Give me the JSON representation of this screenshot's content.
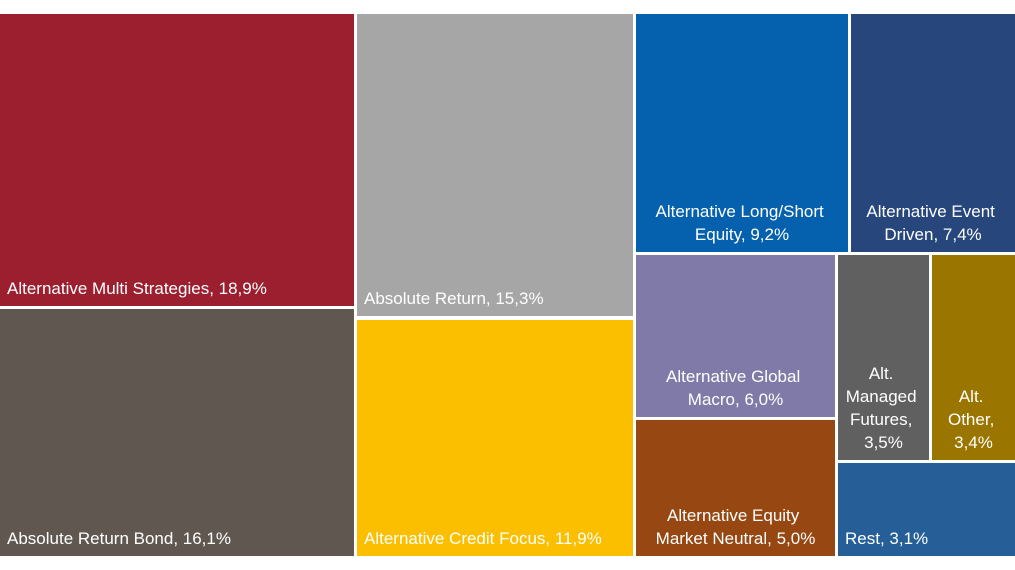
{
  "chart_data": {
    "type": "treemap",
    "labels": [
      "Alternative Multi Strategies, 18,9%",
      "Absolute Return Bond, 16,1%",
      "Absolute Return, 15,3%",
      "Alternative Credit Focus, 11,9%",
      "Alternative Long/Short Equity, 9,2%",
      "Alternative Event Driven, 7,4%",
      "Alternative Global Macro, 6,0%",
      "Alternative Equity Market Neutral, 5,0%",
      "Alt. Managed Futures, 3,5%",
      "Alt. Other, 3,4%",
      "Rest, 3,1%"
    ],
    "values": [
      18.9,
      16.1,
      15.3,
      11.9,
      9.2,
      7.4,
      6.0,
      5.0,
      3.5,
      3.4,
      3.1
    ],
    "colors": [
      "#9b1f2f",
      "#605850",
      "#a6a6a6",
      "#fbbf00",
      "#0561ad",
      "#26467c",
      "#7f7aa8",
      "#974711",
      "#606060",
      "#9a7500",
      "#265f97"
    ]
  }
}
